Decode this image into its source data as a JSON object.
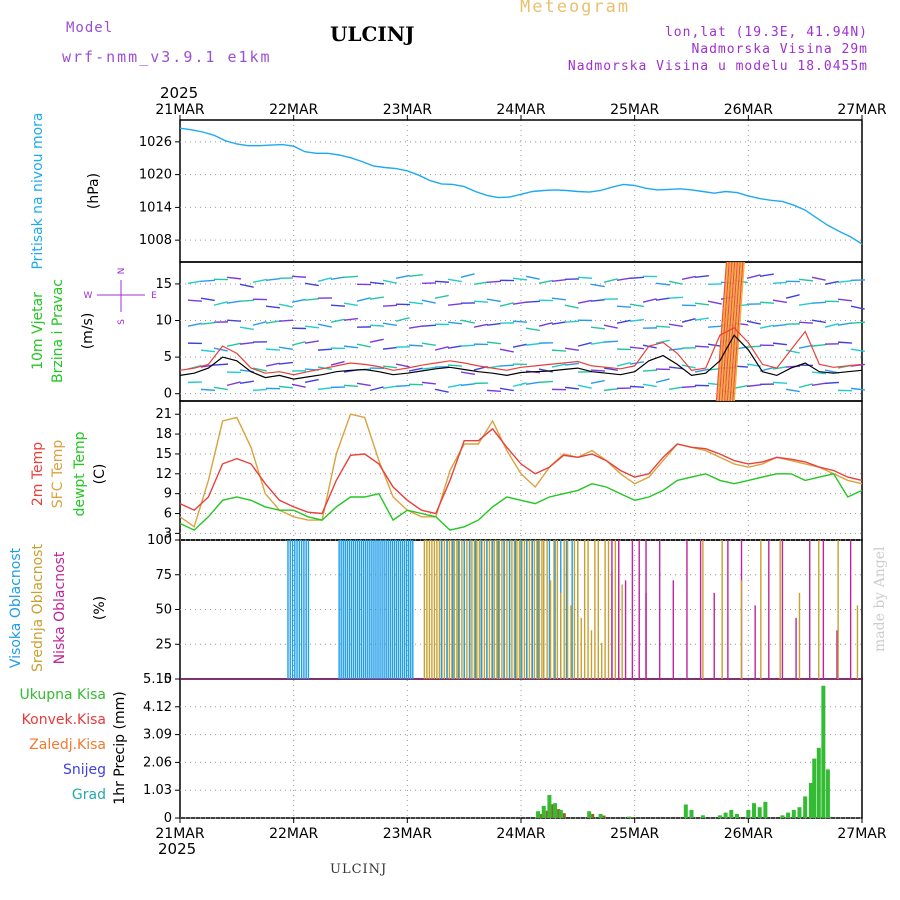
{
  "header": {
    "title": "ULCINJ",
    "meteogram": "Meteogram",
    "model_label": "Model",
    "model_name": "wrf-nmm_v3.9.1 e1km",
    "lonlat": "lon,lat (19.3E, 41.94N)",
    "elevation": "Nadmorska Visina 29m",
    "model_elevation": "Nadmorska Visina u modelu 18.0455m"
  },
  "footer": "ULCINJ",
  "credit": "made by Angel",
  "colors": {
    "pressure": "#1eaaf0",
    "temp2m": "#e8403a",
    "sfc": "#dba23e",
    "dewpt": "#22c722",
    "high_cloud": "#1e9ee8",
    "mid_cloud": "#c8a030",
    "low_cloud": "#c0249a",
    "total_precip": "#33bb33",
    "conv_precip": "#e83a3a",
    "frozen": "#f07a30",
    "snow": "#4040e0",
    "grad": "#22aaaa"
  },
  "chart_data": [
    {
      "type": "line",
      "name": "pressure",
      "ylabel": [
        "Pritisak na nivou mora",
        "(hPa)"
      ],
      "ylim": [
        1004,
        1030
      ],
      "yticks": [
        1008,
        1014,
        1020,
        1026
      ],
      "x": [
        0,
        0.1,
        0.2,
        0.3,
        0.4,
        0.5,
        0.6,
        0.7,
        0.8,
        0.9,
        1.0,
        1.1,
        1.2,
        1.3,
        1.4,
        1.5,
        1.6,
        1.7,
        1.8,
        1.9,
        2.0,
        2.1,
        2.2,
        2.3,
        2.4,
        2.5,
        2.6,
        2.7,
        2.8,
        2.9,
        3.0,
        3.1,
        3.2,
        3.3,
        3.4,
        3.5,
        3.6,
        3.7,
        3.8,
        3.9,
        4.0,
        4.1,
        4.2,
        4.3,
        4.4,
        4.5,
        4.6,
        4.7,
        4.8,
        4.9,
        5.0,
        5.1,
        5.2,
        5.3,
        5.4,
        5.5,
        5.6,
        5.7,
        5.8,
        5.9,
        6.0
      ],
      "series": [
        {
          "values": [
            1028.5,
            1028.2,
            1027.8,
            1027.2,
            1026.2,
            1025.6,
            1025.3,
            1025.3,
            1025.4,
            1025.5,
            1025.2,
            1024.2,
            1023.9,
            1023.9,
            1023.6,
            1023.1,
            1022.4,
            1021.6,
            1021.3,
            1021.1,
            1020.7,
            1019.9,
            1018.9,
            1018.3,
            1018.2,
            1017.8,
            1016.9,
            1016.2,
            1015.8,
            1015.9,
            1016.4,
            1016.9,
            1017.1,
            1017.2,
            1017.1,
            1016.9,
            1016.8,
            1017.1,
            1017.7,
            1018.2,
            1018.0,
            1017.5,
            1017.2,
            1017.3,
            1017.4,
            1017.2,
            1016.9,
            1016.6,
            1016.9,
            1016.7,
            1016.1,
            1015.6,
            1015.3,
            1015.1,
            1014.4,
            1013.5,
            1012.1,
            1010.7,
            1009.6,
            1008.6,
            1007.3
          ]
        }
      ]
    },
    {
      "type": "line",
      "name": "wind",
      "ylabel": [
        "10m Vjetar",
        "Brzina i Pravac",
        "(m/s)"
      ],
      "compass": [
        "N",
        "E",
        "S",
        "W"
      ],
      "ylim": [
        -1,
        18
      ],
      "yticks": [
        0,
        5,
        10,
        15
      ],
      "x": [
        0,
        0.125,
        0.25,
        0.375,
        0.5,
        0.625,
        0.75,
        0.875,
        1.0,
        1.125,
        1.25,
        1.375,
        1.5,
        1.625,
        1.75,
        1.875,
        2.0,
        2.125,
        2.25,
        2.375,
        2.5,
        2.625,
        2.75,
        2.875,
        3.0,
        3.125,
        3.25,
        3.375,
        3.5,
        3.625,
        3.75,
        3.875,
        4.0,
        4.125,
        4.25,
        4.375,
        4.5,
        4.625,
        4.75,
        4.875,
        5.0,
        5.125,
        5.25,
        5.375,
        5.5,
        5.625,
        5.75,
        5.875,
        6.0
      ],
      "series": [
        {
          "values": [
            2.5,
            2.8,
            3.5,
            5.0,
            4.5,
            3.0,
            2.2,
            2.5,
            2.0,
            2.3,
            2.6,
            3.0,
            3.2,
            3.3,
            3.0,
            2.6,
            2.8,
            3.1,
            3.4,
            3.6,
            3.3,
            3.0,
            2.8,
            2.5,
            2.9,
            3.0,
            3.1,
            3.3,
            3.5,
            3.0,
            2.8,
            2.6,
            3.0,
            4.5,
            5.2,
            4.0,
            2.5,
            2.8,
            4.5,
            8.0,
            6.0,
            3.0,
            2.5,
            3.5,
            4.2,
            3.0,
            2.8,
            3.0,
            3.2
          ]
        },
        {
          "values": [
            3.2,
            3.5,
            4.0,
            6.5,
            5.5,
            3.5,
            2.8,
            3.0,
            2.6,
            3.0,
            3.4,
            3.8,
            4.2,
            4.0,
            3.7,
            3.2,
            3.5,
            3.9,
            4.2,
            4.5,
            4.2,
            3.8,
            3.5,
            3.2,
            3.6,
            3.8,
            4.0,
            4.2,
            4.4,
            3.8,
            3.6,
            3.4,
            3.8,
            6.5,
            7.0,
            5.5,
            3.2,
            3.5,
            8.0,
            9.0,
            7.0,
            4.0,
            3.5,
            6.0,
            8.5,
            4.0,
            3.6,
            3.8,
            4.0
          ]
        }
      ]
    },
    {
      "type": "line",
      "name": "temperature",
      "ylabel": [
        "2m Temp",
        "SFC Temp",
        "dewpt Temp",
        "(C)"
      ],
      "ylim": [
        2,
        23
      ],
      "yticks": [
        3,
        6,
        9,
        12,
        15,
        18,
        21
      ],
      "x": [
        0,
        0.125,
        0.25,
        0.375,
        0.5,
        0.625,
        0.75,
        0.875,
        1.0,
        1.125,
        1.25,
        1.375,
        1.5,
        1.625,
        1.75,
        1.875,
        2.0,
        2.125,
        2.25,
        2.375,
        2.5,
        2.625,
        2.75,
        2.875,
        3.0,
        3.125,
        3.25,
        3.375,
        3.5,
        3.625,
        3.75,
        3.875,
        4.0,
        4.125,
        4.25,
        4.375,
        4.5,
        4.625,
        4.75,
        4.875,
        5.0,
        5.125,
        5.25,
        5.375,
        5.5,
        5.625,
        5.75,
        5.875,
        6.0
      ],
      "series": [
        {
          "name": "2m Temp",
          "values": [
            7.5,
            6.5,
            8.5,
            13.5,
            14.3,
            13.5,
            10.5,
            8.0,
            7.0,
            6.2,
            6.0,
            11.0,
            14.8,
            15.0,
            13.5,
            10.0,
            8.0,
            6.5,
            6.0,
            11.0,
            17.0,
            17.0,
            18.8,
            16.0,
            13.5,
            12.0,
            13.0,
            14.8,
            14.5,
            15.0,
            14.0,
            12.5,
            11.5,
            12.0,
            14.5,
            16.5,
            16.0,
            15.8,
            15.0,
            14.0,
            13.5,
            13.8,
            14.5,
            14.2,
            13.8,
            13.0,
            12.5,
            11.5,
            11.0
          ]
        },
        {
          "name": "SFC Temp",
          "values": [
            5.5,
            4.0,
            11.0,
            20.0,
            20.5,
            16.0,
            9.0,
            6.5,
            5.5,
            5.0,
            5.0,
            15.0,
            21.0,
            20.5,
            14.0,
            8.5,
            6.5,
            5.5,
            5.5,
            12.5,
            16.5,
            16.5,
            20.0,
            15.5,
            12.0,
            10.0,
            13.0,
            15.0,
            14.5,
            15.5,
            14.0,
            12.0,
            10.5,
            11.5,
            14.0,
            16.5,
            16.0,
            15.5,
            14.5,
            13.5,
            13.0,
            13.5,
            14.5,
            14.0,
            13.5,
            13.0,
            12.0,
            11.0,
            10.5
          ]
        },
        {
          "name": "dewpt Temp",
          "values": [
            4.5,
            3.5,
            5.5,
            8.0,
            8.5,
            8.0,
            7.0,
            6.5,
            6.5,
            5.5,
            5.0,
            7.0,
            8.5,
            8.5,
            9.0,
            5.0,
            6.5,
            6.0,
            5.5,
            3.5,
            4.0,
            5.0,
            7.0,
            8.5,
            8.0,
            7.5,
            8.5,
            9.0,
            9.5,
            10.5,
            10.0,
            9.0,
            8.0,
            8.5,
            9.5,
            11.0,
            11.5,
            12.0,
            11.0,
            10.5,
            11.0,
            11.5,
            12.0,
            12.0,
            11.0,
            11.5,
            12.0,
            8.5,
            9.5
          ]
        }
      ]
    },
    {
      "type": "bar",
      "name": "clouds",
      "ylabel": [
        "Visoka Oblacnost",
        "Srednja Oblacnost",
        "Niska Oblacnost",
        "(%)"
      ],
      "ylim": [
        0,
        100
      ],
      "yticks": [
        0,
        25,
        50,
        75,
        100
      ],
      "legend": [
        "Visoka Oblacnost",
        "Srednja Oblacnost",
        "Niska Oblacnost"
      ]
    },
    {
      "type": "bar",
      "name": "precipitation",
      "ylabel": [
        "1hr Precip (mm)"
      ],
      "ylim": [
        0,
        5.15
      ],
      "yticks": [
        0,
        1.03,
        2.06,
        3.09,
        4.12,
        5.15
      ],
      "legend": [
        "Ukupna Kisa",
        "Konvek.Kisa",
        "Zaledj.Kisa",
        "Snijeg",
        "Grad"
      ],
      "bars": [
        {
          "day": 3.15,
          "value": 0.25
        },
        {
          "day": 3.2,
          "value": 0.45
        },
        {
          "day": 3.25,
          "value": 0.85
        },
        {
          "day": 3.3,
          "value": 0.55
        },
        {
          "day": 3.35,
          "value": 0.3
        },
        {
          "day": 3.6,
          "value": 0.25
        },
        {
          "day": 3.7,
          "value": 0.15
        },
        {
          "day": 3.95,
          "value": 0.05
        },
        {
          "day": 4.45,
          "value": 0.5
        },
        {
          "day": 4.5,
          "value": 0.3
        },
        {
          "day": 4.6,
          "value": 0.1
        },
        {
          "day": 4.75,
          "value": 0.1
        },
        {
          "day": 4.8,
          "value": 0.2
        },
        {
          "day": 4.85,
          "value": 0.3
        },
        {
          "day": 4.9,
          "value": 0.15
        },
        {
          "day": 5.0,
          "value": 0.3
        },
        {
          "day": 5.05,
          "value": 0.55
        },
        {
          "day": 5.1,
          "value": 0.4
        },
        {
          "day": 5.15,
          "value": 0.6
        },
        {
          "day": 5.3,
          "value": 0.1
        },
        {
          "day": 5.35,
          "value": 0.2
        },
        {
          "day": 5.4,
          "value": 0.3
        },
        {
          "day": 5.45,
          "value": 0.4
        },
        {
          "day": 5.5,
          "value": 0.8
        },
        {
          "day": 5.55,
          "value": 1.3
        },
        {
          "day": 5.58,
          "value": 2.2
        },
        {
          "day": 5.62,
          "value": 2.6
        },
        {
          "day": 5.66,
          "value": 4.9
        },
        {
          "day": 5.7,
          "value": 1.8
        }
      ]
    }
  ],
  "x_axis": {
    "year": "2025",
    "labels": [
      "21MAR",
      "22MAR",
      "23MAR",
      "24MAR",
      "25MAR",
      "26MAR",
      "27MAR"
    ]
  }
}
